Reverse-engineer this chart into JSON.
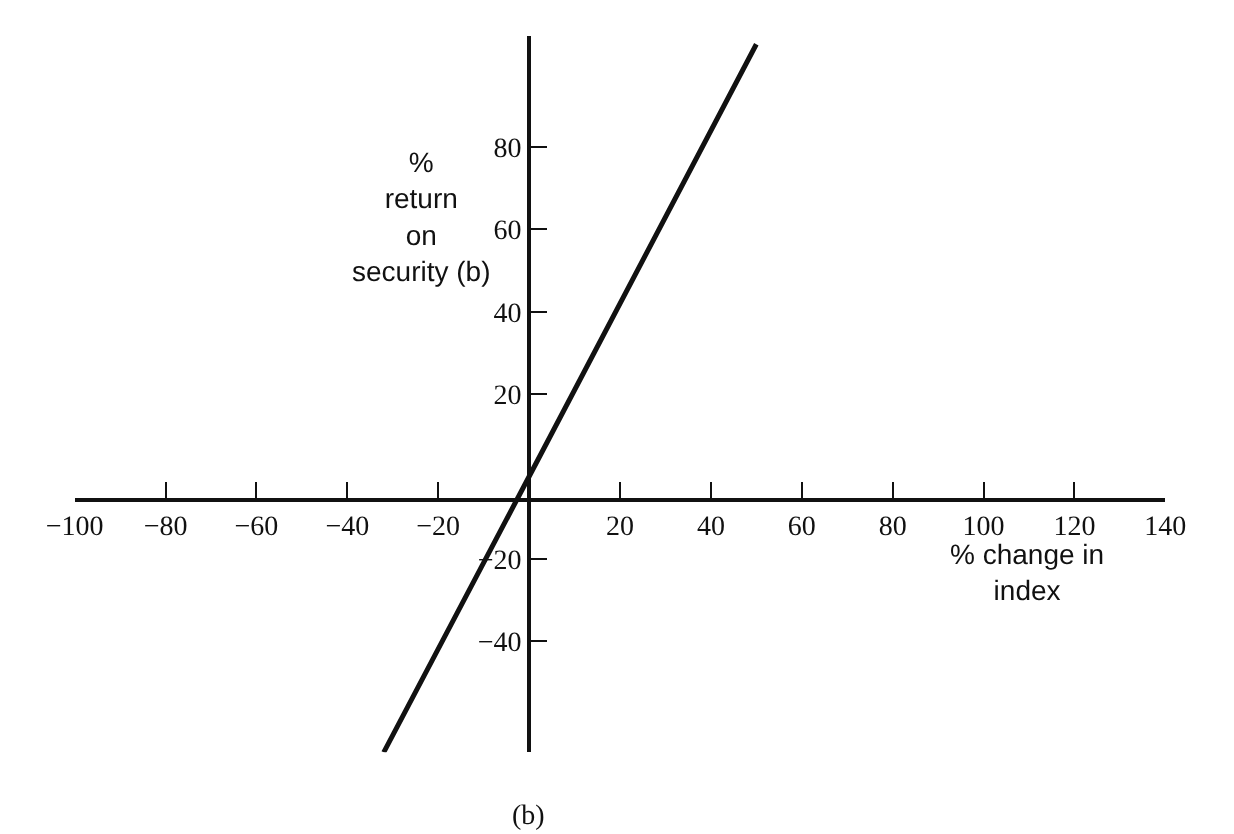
{
  "chart_data": {
    "type": "line",
    "xlabel": "% change in index",
    "ylabel": "% return on security (b)",
    "x": [
      -32,
      0,
      50
    ],
    "series": [
      {
        "color": "#111111",
        "values": [
          -67,
          0,
          105
        ]
      }
    ],
    "xlim": [
      -100,
      140
    ],
    "ylim": [
      -67,
      107
    ],
    "xticks": [
      -100,
      -80,
      -60,
      -40,
      -20,
      20,
      40,
      60,
      80,
      100,
      120,
      140
    ],
    "yticks": [
      -40,
      -20,
      20,
      40,
      60,
      80
    ],
    "annotations": [
      "(b)"
    ],
    "marker": "none",
    "line_style": "solid",
    "legend": false
  }
}
